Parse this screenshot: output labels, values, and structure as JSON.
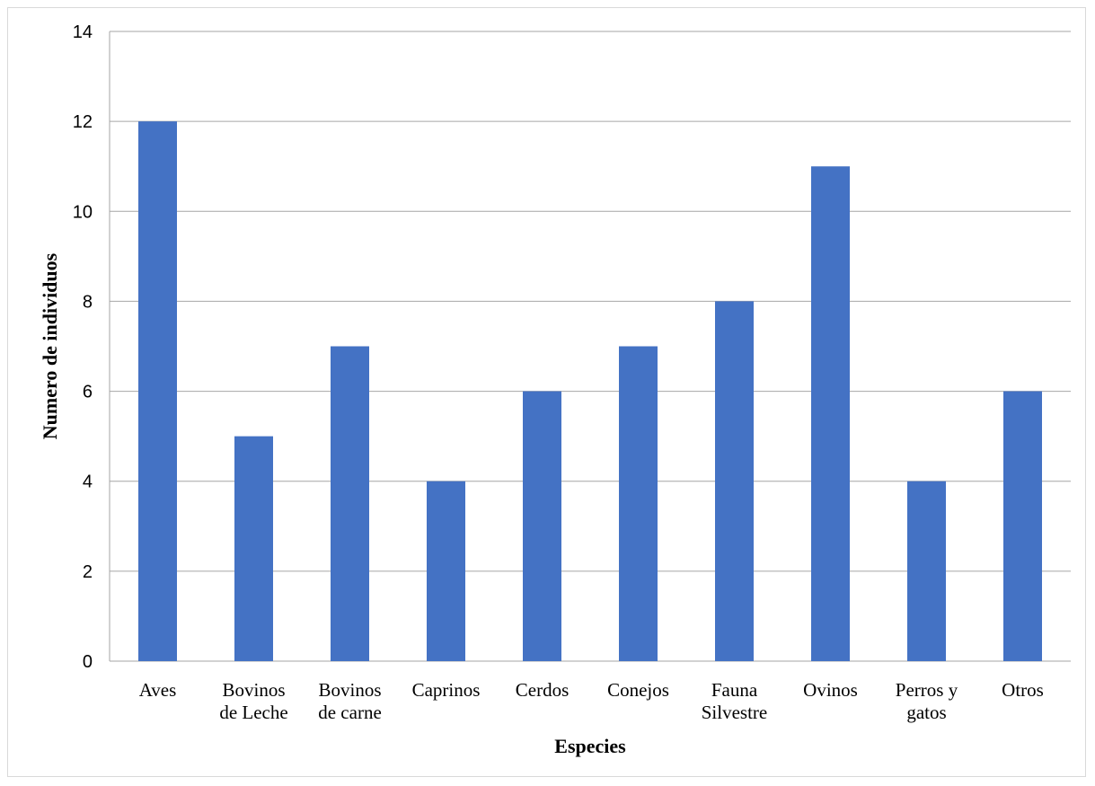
{
  "colors": {
    "bar": "#4472C4",
    "grid": "#a6a6a6",
    "frame": "#d9d9d9"
  },
  "chart_data": {
    "type": "bar",
    "title": "",
    "xlabel": "Especies",
    "ylabel": "Numero  de individuos",
    "ylim": [
      0,
      14
    ],
    "yticks": [
      "0",
      "2",
      "4",
      "6",
      "8",
      "10",
      "12",
      "14"
    ],
    "ytick_values": [
      0,
      2,
      4,
      6,
      8,
      10,
      12,
      14
    ],
    "grid": true,
    "legend": "none",
    "categories": [
      [
        "Aves"
      ],
      [
        "Bovinos",
        "de Leche"
      ],
      [
        "Bovinos",
        "de carne"
      ],
      [
        "Caprinos"
      ],
      [
        "Cerdos"
      ],
      [
        "Conejos"
      ],
      [
        "Fauna",
        "Silvestre"
      ],
      [
        "Ovinos"
      ],
      [
        "Perros y",
        "gatos"
      ],
      [
        "Otros"
      ]
    ],
    "values": [
      12,
      5,
      7,
      4,
      6,
      7,
      8,
      11,
      4,
      6
    ]
  }
}
